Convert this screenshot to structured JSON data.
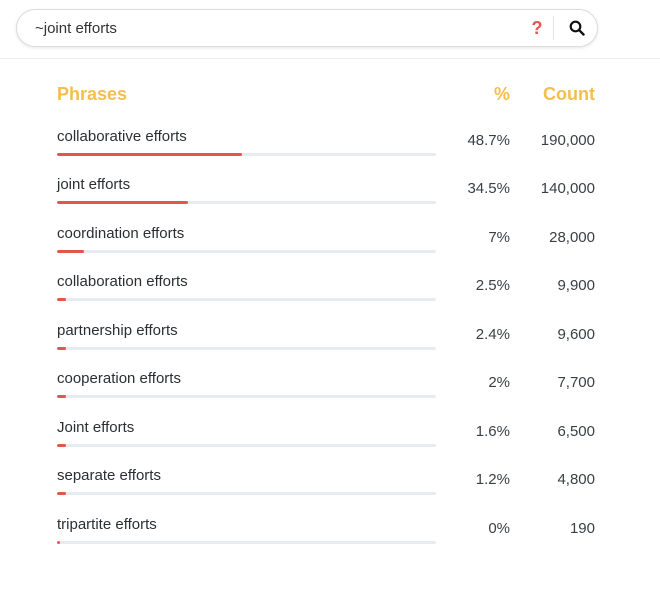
{
  "search": {
    "value": "~joint efforts",
    "help_label": "?"
  },
  "table": {
    "headers": {
      "phrases": "Phrases",
      "percent": "%",
      "count": "Count"
    },
    "rows": [
      {
        "phrase": "collaborative efforts",
        "percent": "48.7%",
        "count": "190,000",
        "share": 0.487
      },
      {
        "phrase": "joint efforts",
        "percent": "34.5%",
        "count": "140,000",
        "share": 0.345
      },
      {
        "phrase": "coordination efforts",
        "percent": "7%",
        "count": "28,000",
        "share": 0.07
      },
      {
        "phrase": "collaboration efforts",
        "percent": "2.5%",
        "count": "9,900",
        "share": 0.025
      },
      {
        "phrase": "partnership efforts",
        "percent": "2.4%",
        "count": "9,600",
        "share": 0.024
      },
      {
        "phrase": "cooperation efforts",
        "percent": "2%",
        "count": "7,700",
        "share": 0.02
      },
      {
        "phrase": "Joint efforts",
        "percent": "1.6%",
        "count": "6,500",
        "share": 0.016
      },
      {
        "phrase": "separate efforts",
        "percent": "1.2%",
        "count": "4,800",
        "share": 0.012
      },
      {
        "phrase": "tripartite efforts",
        "percent": "0%",
        "count": "190",
        "share": 0.0
      }
    ]
  },
  "colors": {
    "accent_header": "#f4be4f",
    "bar_fill": "#e2574c",
    "bar_track": "#e7ebef",
    "help_icon": "#e2574c"
  }
}
